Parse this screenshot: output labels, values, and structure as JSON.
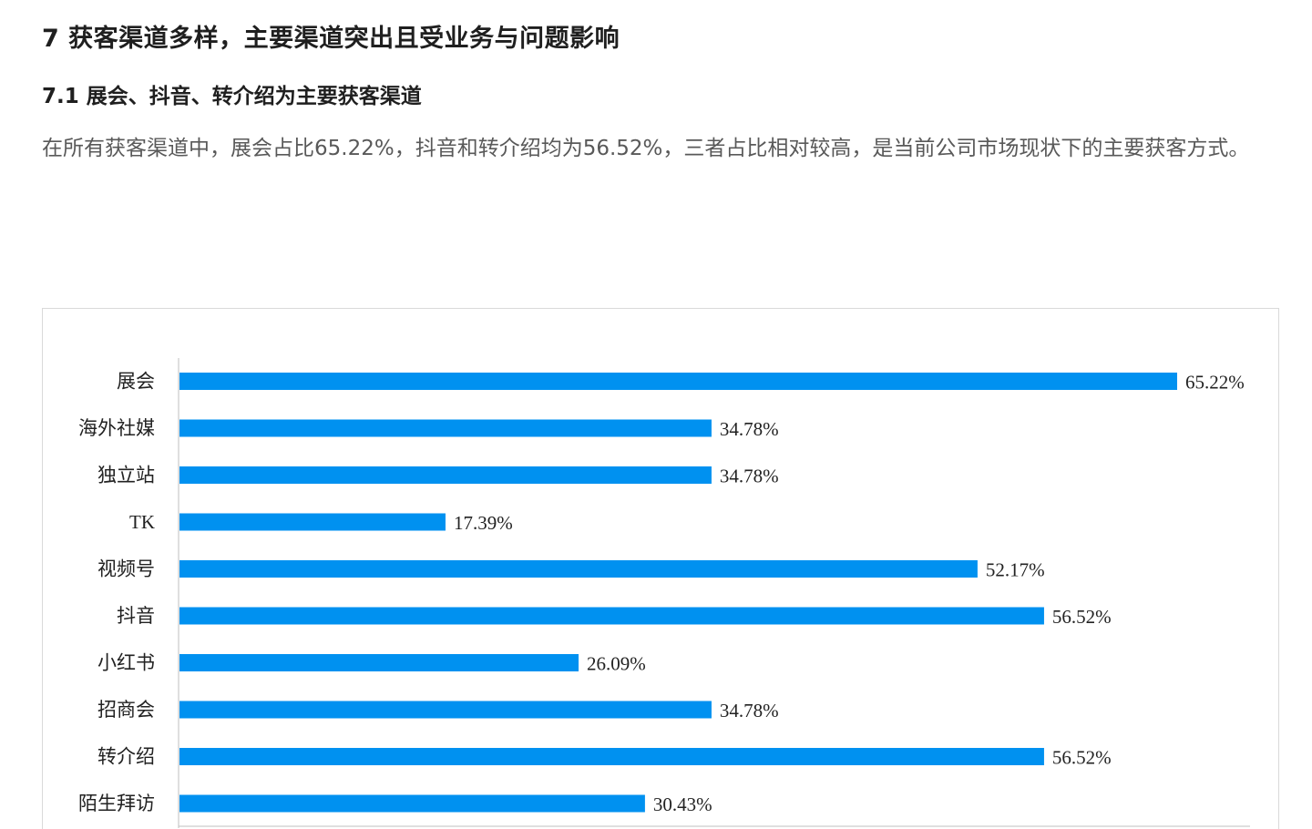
{
  "heading": "7 获客渠道多样，主要渠道突出且受业务与问题影响",
  "subheading": "7.1 展会、抖音、转介绍为主要获客渠道",
  "paragraph": "在所有获客渠道中，展会占比65.22%，抖音和转介绍均为56.52%，三者占比相对较高，是当前公司市场现状下的主要获客方式。",
  "chart_data": {
    "type": "bar",
    "orientation": "horizontal",
    "categories": [
      "展会",
      "海外社媒",
      "独立站",
      "TK",
      "视频号",
      "抖音",
      "小红书",
      "招商会",
      "转介绍",
      "陌生拜访"
    ],
    "values": [
      65.22,
      34.78,
      34.78,
      17.39,
      52.17,
      56.52,
      26.09,
      34.78,
      56.52,
      30.43
    ],
    "value_labels": [
      "65.22%",
      "34.78%",
      "34.78%",
      "17.39%",
      "52.17%",
      "56.52%",
      "26.09%",
      "34.78%",
      "56.52%",
      "30.43%"
    ],
    "bar_color": "#0091f0",
    "xlim": [
      0,
      70
    ],
    "grid": false,
    "legend": "none"
  }
}
